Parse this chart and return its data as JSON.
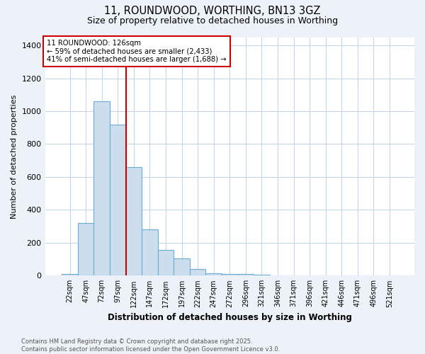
{
  "title_line1": "11, ROUNDWOOD, WORTHING, BN13 3GZ",
  "title_line2": "Size of property relative to detached houses in Worthing",
  "xlabel": "Distribution of detached houses by size in Worthing",
  "ylabel": "Number of detached properties",
  "categories": [
    "22sqm",
    "47sqm",
    "72sqm",
    "97sqm",
    "122sqm",
    "147sqm",
    "172sqm",
    "197sqm",
    "222sqm",
    "247sqm",
    "272sqm",
    "296sqm",
    "321sqm",
    "346sqm",
    "371sqm",
    "396sqm",
    "421sqm",
    "446sqm",
    "471sqm",
    "496sqm",
    "521sqm"
  ],
  "values": [
    10,
    320,
    1060,
    920,
    660,
    280,
    155,
    105,
    40,
    15,
    10,
    10,
    5,
    2,
    0,
    0,
    0,
    0,
    0,
    0,
    0
  ],
  "bar_color": "#ccdded",
  "bar_edge_color": "#6aaed6",
  "red_line_x": 3.5,
  "annotation_text": "11 ROUNDWOOD: 126sqm\n← 59% of detached houses are smaller (2,433)\n41% of semi-detached houses are larger (1,688) →",
  "annotation_box_color": "#ffffff",
  "annotation_box_edge_color": "#cc0000",
  "red_line_color": "#cc0000",
  "ylim": [
    0,
    1450
  ],
  "yticks": [
    0,
    200,
    400,
    600,
    800,
    1000,
    1200,
    1400
  ],
  "footer_line1": "Contains HM Land Registry data © Crown copyright and database right 2025.",
  "footer_line2": "Contains public sector information licensed under the Open Government Licence v3.0.",
  "background_color": "#edf2f9",
  "plot_bg_color": "#ffffff",
  "grid_color": "#c5d5e8"
}
